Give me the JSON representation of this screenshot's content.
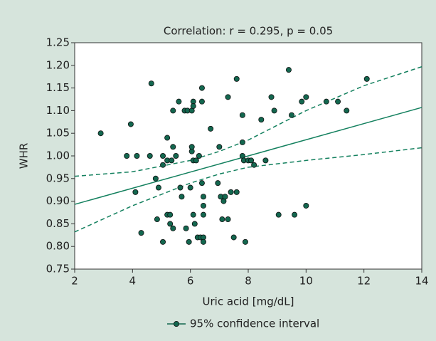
{
  "chart_data": {
    "type": "scatter",
    "title": "Correlation: r = 0.295, p = 0.05",
    "xlabel": "Uric acid [mg/dL]",
    "ylabel": "WHR",
    "xlim": [
      2,
      14
    ],
    "xticks": [
      2,
      4,
      6,
      8,
      10,
      12,
      14
    ],
    "ylim": [
      0.75,
      1.25
    ],
    "yticks": [
      0.75,
      {
        "value": 0.8,
        "label": "0.80"
      },
      0.85,
      {
        "value": 0.9,
        "label": "0.90"
      },
      0.95,
      {
        "value": 1,
        "label": "1.00"
      },
      1.05,
      {
        "value": 1.1,
        "label": "1.10"
      },
      1.15,
      {
        "value": 1.2,
        "label": "1.20"
      },
      1.25
    ],
    "legend": "bottom",
    "series": [
      {
        "name": "95% confidence interval",
        "color": "#13674f",
        "x": [
          2.9,
          3.94,
          3.8,
          4.15,
          4.1,
          4.3,
          4.65,
          4.6,
          4.8,
          4.9,
          4.85,
          5.05,
          5.05,
          5.2,
          5.2,
          5.2,
          5.3,
          5.3,
          5.4,
          5.4,
          5.4,
          5.05,
          5.35,
          5.5,
          5.6,
          5.65,
          5.7,
          5.8,
          5.9,
          6.05,
          6.1,
          6.1,
          5.85,
          5.95,
          6.0,
          6.05,
          6.05,
          6.1,
          6.1,
          6.15,
          6.2,
          6.3,
          6.25,
          6.35,
          6.45,
          6.45,
          6.4,
          6.45,
          6.45,
          6.45,
          6.4,
          6.4,
          6.7,
          6.95,
          7.0,
          7.05,
          7.15,
          7.2,
          7.1,
          7.3,
          7.3,
          7.4,
          7.6,
          7.5,
          7.6,
          7.8,
          7.8,
          7.8,
          7.85,
          7.9,
          8.0,
          8.1,
          8.2,
          8.45,
          8.6,
          8.8,
          8.9,
          9.05,
          9.4,
          9.5,
          9.6,
          9.85,
          10.0,
          10.0,
          10.7,
          11.1,
          11.4,
          12.1
        ],
        "values": [
          1.05,
          1.07,
          1.0,
          1.0,
          0.92,
          0.83,
          1.16,
          1.0,
          0.95,
          0.93,
          0.86,
          0.98,
          1.0,
          1.04,
          0.99,
          0.87,
          0.87,
          0.85,
          0.84,
          1.02,
          1.1,
          0.81,
          0.99,
          1.0,
          1.12,
          0.93,
          0.91,
          1.1,
          1.1,
          1.1,
          1.12,
          1.11,
          0.84,
          0.81,
          0.93,
          1.01,
          1.02,
          0.99,
          0.87,
          0.85,
          0.99,
          1.0,
          0.82,
          0.82,
          0.82,
          0.81,
          0.94,
          0.91,
          0.89,
          0.87,
          1.12,
          1.15,
          1.06,
          0.94,
          1.02,
          0.91,
          0.9,
          0.91,
          0.86,
          0.86,
          1.13,
          0.92,
          0.92,
          0.82,
          1.17,
          1.09,
          1.03,
          1.0,
          0.99,
          0.81,
          0.99,
          0.99,
          0.98,
          1.08,
          0.99,
          1.13,
          1.1,
          0.87,
          1.19,
          1.09,
          0.87,
          1.12,
          1.13,
          0.89,
          1.12,
          1.12,
          1.1,
          1.17
        ]
      }
    ],
    "lines": [
      {
        "style": "solid",
        "color": "#13805e",
        "x": [
          2,
          14
        ],
        "values": [
          0.893,
          1.107
        ]
      },
      {
        "style": "dashed",
        "color": "#13805e",
        "x": [
          2,
          4,
          6,
          7,
          8,
          10,
          12,
          14
        ],
        "values": [
          0.955,
          0.965,
          0.99,
          1.01,
          1.035,
          1.1,
          1.155,
          1.197
        ]
      },
      {
        "style": "dashed",
        "color": "#13805e",
        "x": [
          2,
          4,
          6,
          7,
          8,
          10,
          12,
          14
        ],
        "values": [
          0.832,
          0.89,
          0.94,
          0.96,
          0.975,
          0.99,
          1.003,
          1.018
        ]
      }
    ]
  }
}
